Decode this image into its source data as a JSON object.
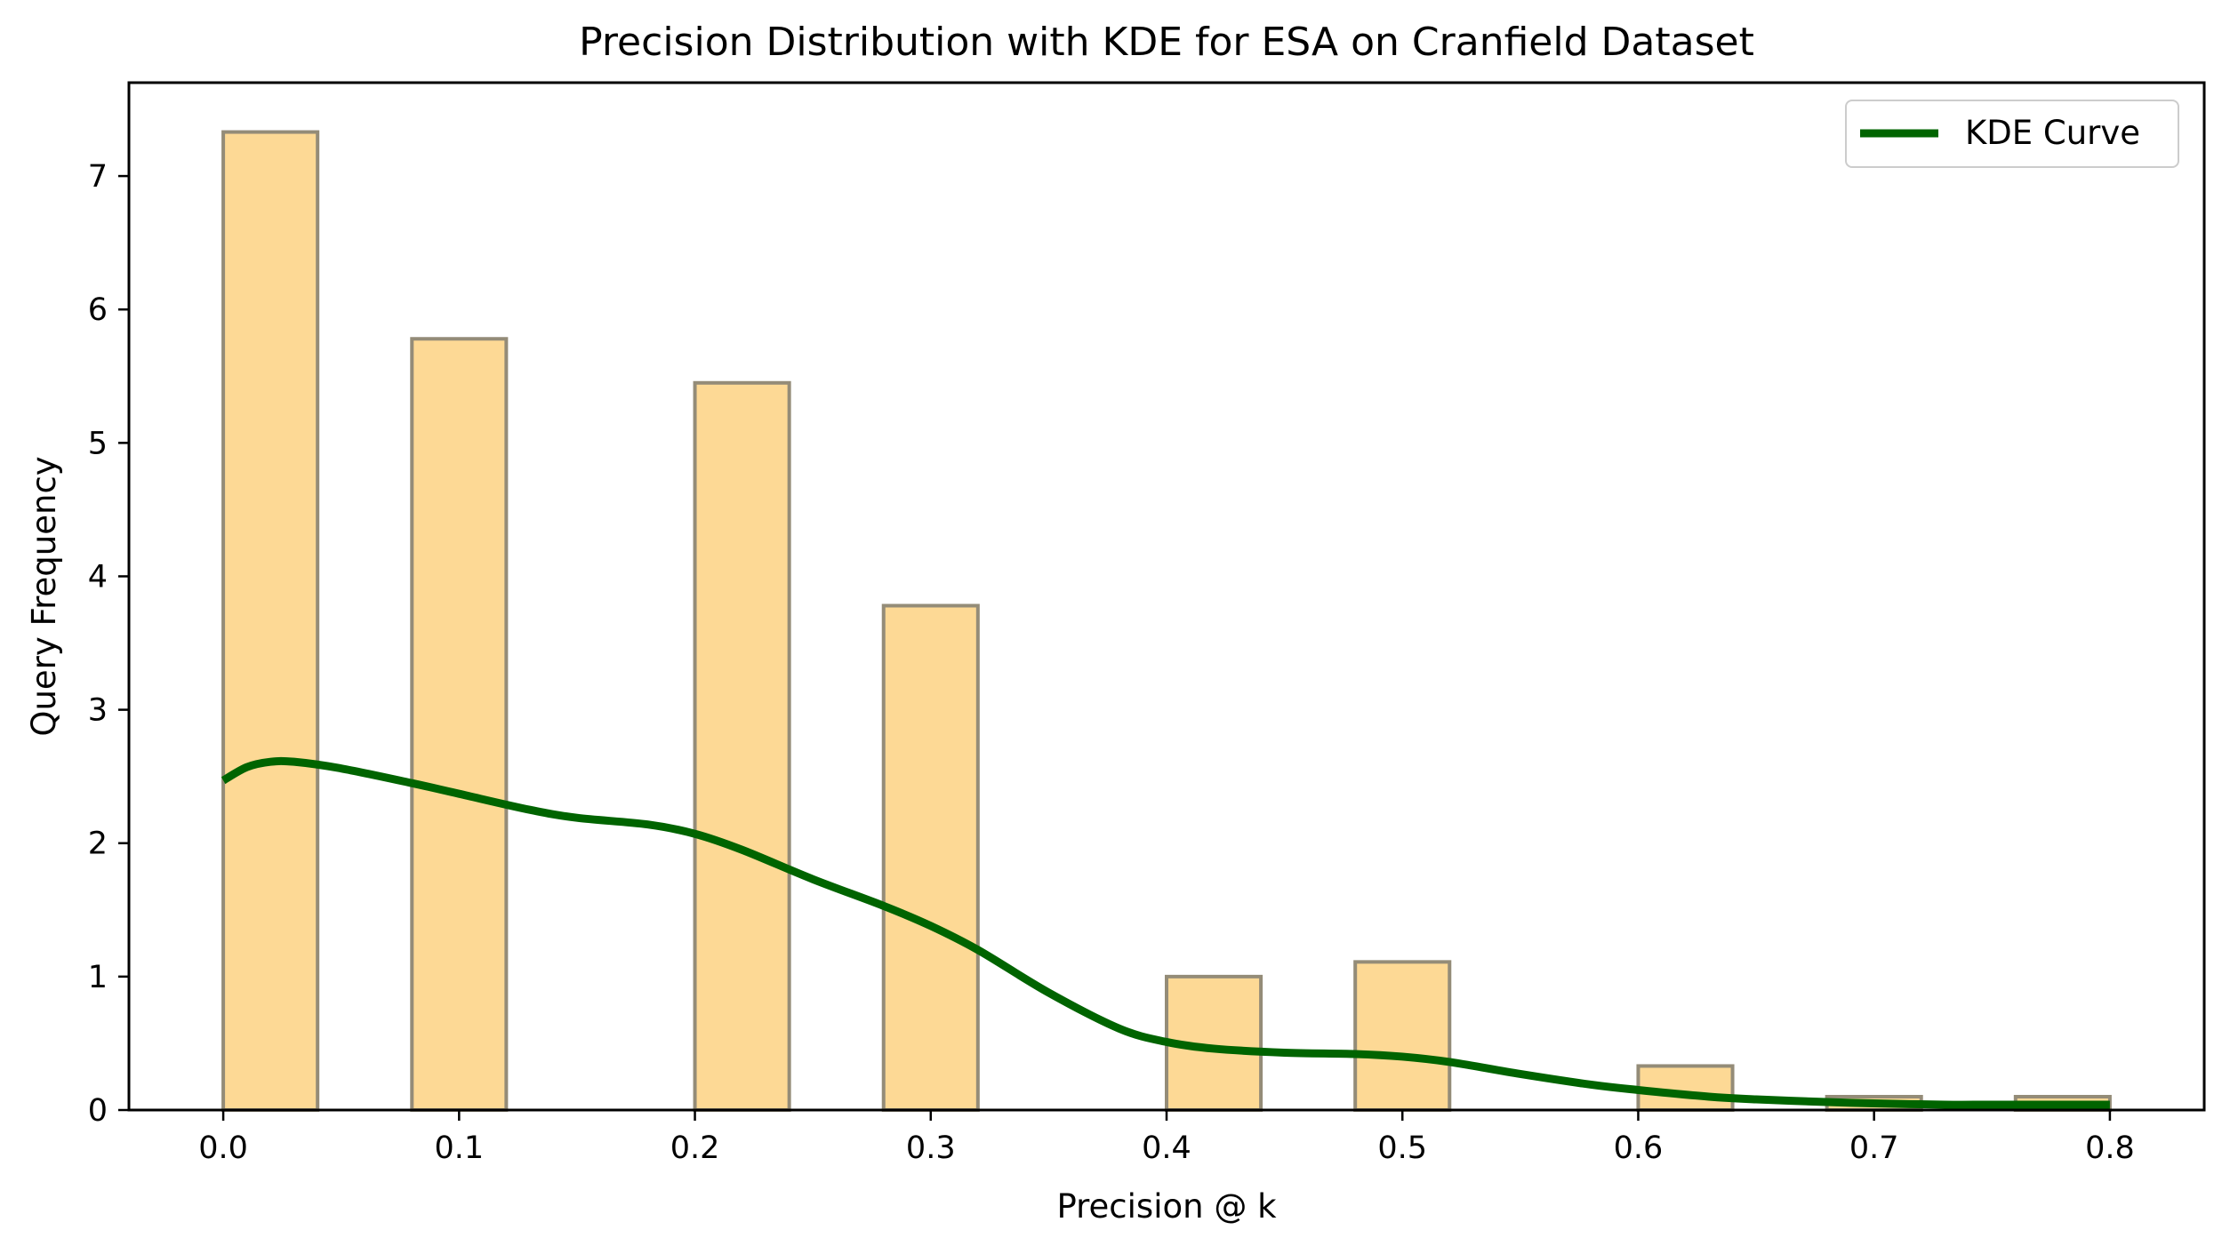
{
  "chart_data": {
    "type": "bar",
    "title": "Precision Distribution with KDE for ESA on Cranfield Dataset",
    "xlabel": "Precision @ k",
    "ylabel": "Query Frequency",
    "xlim": [
      -0.04,
      0.84
    ],
    "ylim": [
      0,
      7.7
    ],
    "xticks": [
      0.0,
      0.1,
      0.2,
      0.3,
      0.4,
      0.5,
      0.6,
      0.7,
      0.8
    ],
    "xtick_labels": [
      "0.0",
      "0.1",
      "0.2",
      "0.3",
      "0.4",
      "0.5",
      "0.6",
      "0.7",
      "0.8"
    ],
    "yticks": [
      0,
      1,
      2,
      3,
      4,
      5,
      6,
      7
    ],
    "ytick_labels": [
      "0",
      "1",
      "2",
      "3",
      "4",
      "5",
      "6",
      "7"
    ],
    "grid": false,
    "histogram": {
      "bin_edges": [
        0.0,
        0.04,
        0.08,
        0.12,
        0.16,
        0.2,
        0.24,
        0.28,
        0.32,
        0.36,
        0.4,
        0.44,
        0.48,
        0.52,
        0.56,
        0.6,
        0.64,
        0.68,
        0.72,
        0.76,
        0.8
      ],
      "values": [
        7.33,
        0,
        5.78,
        0,
        0,
        5.45,
        0,
        3.78,
        0,
        0,
        1.0,
        0,
        1.11,
        0,
        0,
        0.33,
        0,
        0.1,
        0,
        0.1
      ],
      "fill_color": "#fdd995",
      "edge_color": "#948c78"
    },
    "kde": {
      "name": "KDE Curve",
      "color": "#006400",
      "x": [
        0.0,
        0.01,
        0.02,
        0.03,
        0.05,
        0.08,
        0.1,
        0.13,
        0.15,
        0.18,
        0.2,
        0.22,
        0.25,
        0.28,
        0.3,
        0.32,
        0.35,
        0.38,
        0.4,
        0.42,
        0.45,
        0.48,
        0.5,
        0.52,
        0.55,
        0.58,
        0.6,
        0.63,
        0.65,
        0.68,
        0.7,
        0.73,
        0.75,
        0.78,
        0.8
      ],
      "y": [
        2.47,
        2.57,
        2.61,
        2.61,
        2.56,
        2.45,
        2.37,
        2.25,
        2.19,
        2.14,
        2.07,
        1.95,
        1.73,
        1.53,
        1.38,
        1.2,
        0.88,
        0.61,
        0.51,
        0.46,
        0.43,
        0.42,
        0.4,
        0.36,
        0.27,
        0.19,
        0.15,
        0.1,
        0.08,
        0.06,
        0.05,
        0.04,
        0.04,
        0.04,
        0.04
      ]
    },
    "legend": {
      "position": "top-right",
      "entries": [
        "KDE Curve"
      ]
    }
  }
}
